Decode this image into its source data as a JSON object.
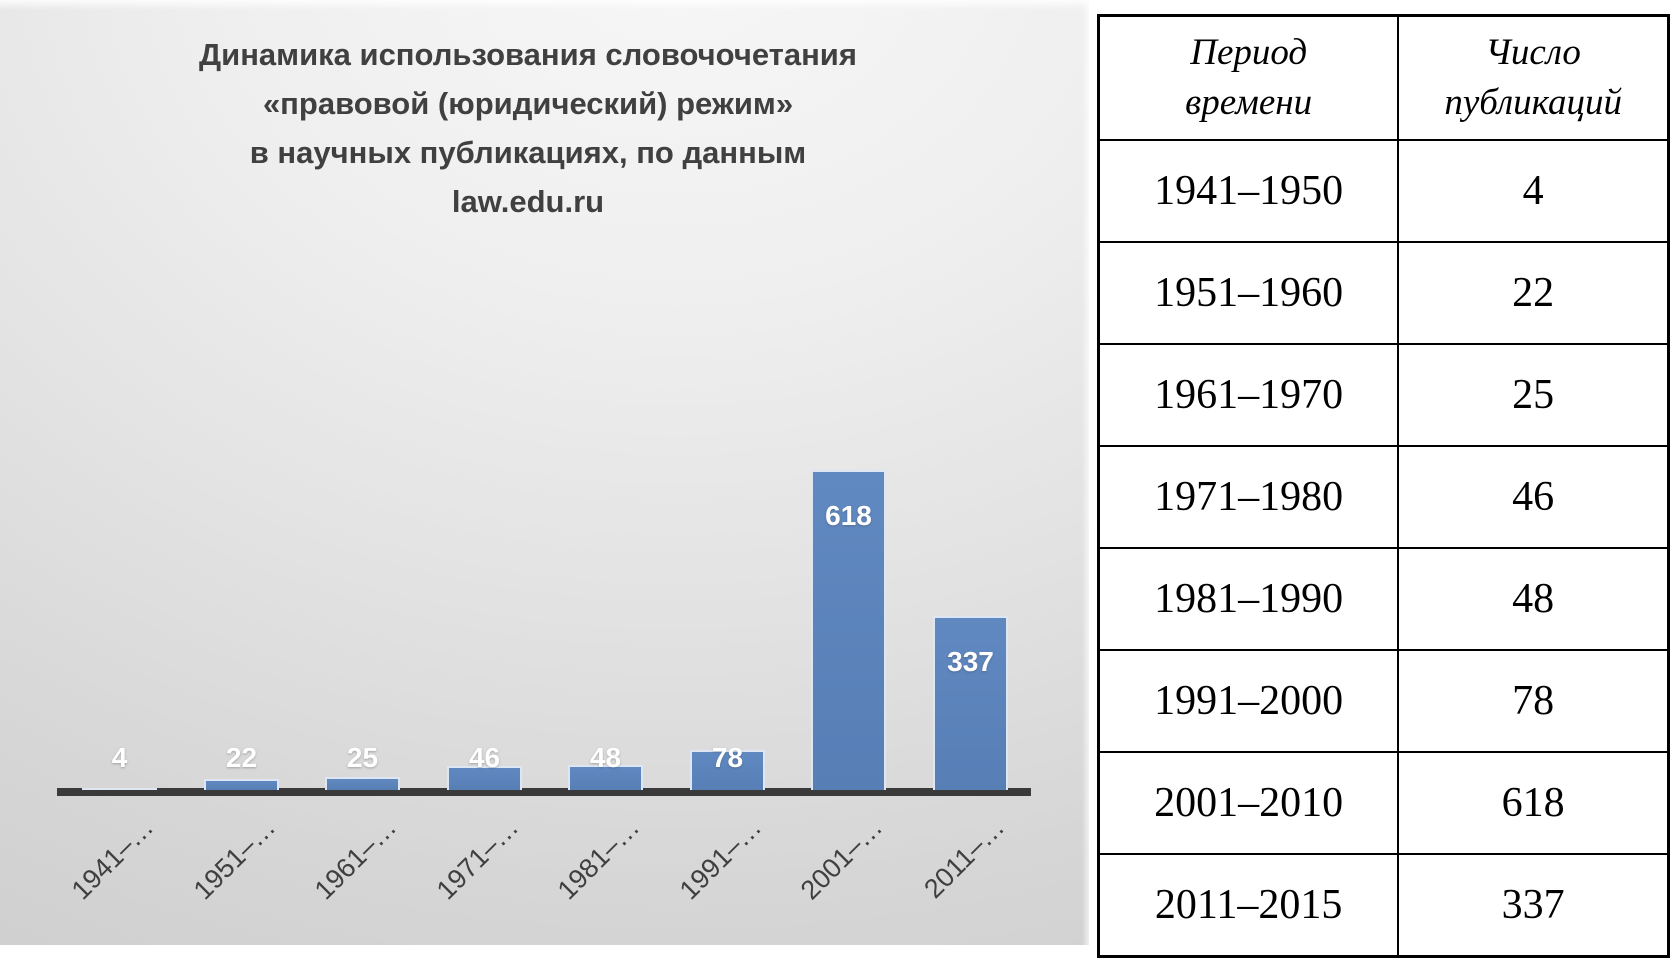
{
  "slide": {
    "title_lines": [
      "Динамика использования словочочетания",
      "«правовой (юридический) режим»",
      "в научных публикациях, по данным",
      "law.edu.ru"
    ]
  },
  "chart_data": {
    "type": "bar",
    "title": "Динамика использования словочочетания «правовой (юридический) режим» в научных публикациях, по данным law.edu.ru",
    "categories": [
      "1941–…",
      "1951–…",
      "1961–…",
      "1971–…",
      "1981–…",
      "1991–…",
      "2001–…",
      "2011–…"
    ],
    "values": [
      4,
      22,
      25,
      46,
      48,
      78,
      618,
      337
    ],
    "xlabel": "",
    "ylabel": "",
    "ylim": [
      0,
      650
    ],
    "grid": false,
    "legend": false,
    "data_labels": true,
    "bar_color": "#5b86bd",
    "bar_border_color": "#dde6f2",
    "axis_color": "#3a3a3a",
    "data_label_color": "#ffffff",
    "tick_label_color": "#3f3f3f"
  },
  "table": {
    "headers": [
      "Период\nвремени",
      "Число\nпубликаций"
    ],
    "rows": [
      [
        "1941–1950",
        "4"
      ],
      [
        "1951–1960",
        "22"
      ],
      [
        "1961–1970",
        "25"
      ],
      [
        "1971–1980",
        "46"
      ],
      [
        "1981–1990",
        "48"
      ],
      [
        "1991–2000",
        "78"
      ],
      [
        "2001–2010",
        "618"
      ],
      [
        "2011–2015",
        "337"
      ]
    ]
  }
}
